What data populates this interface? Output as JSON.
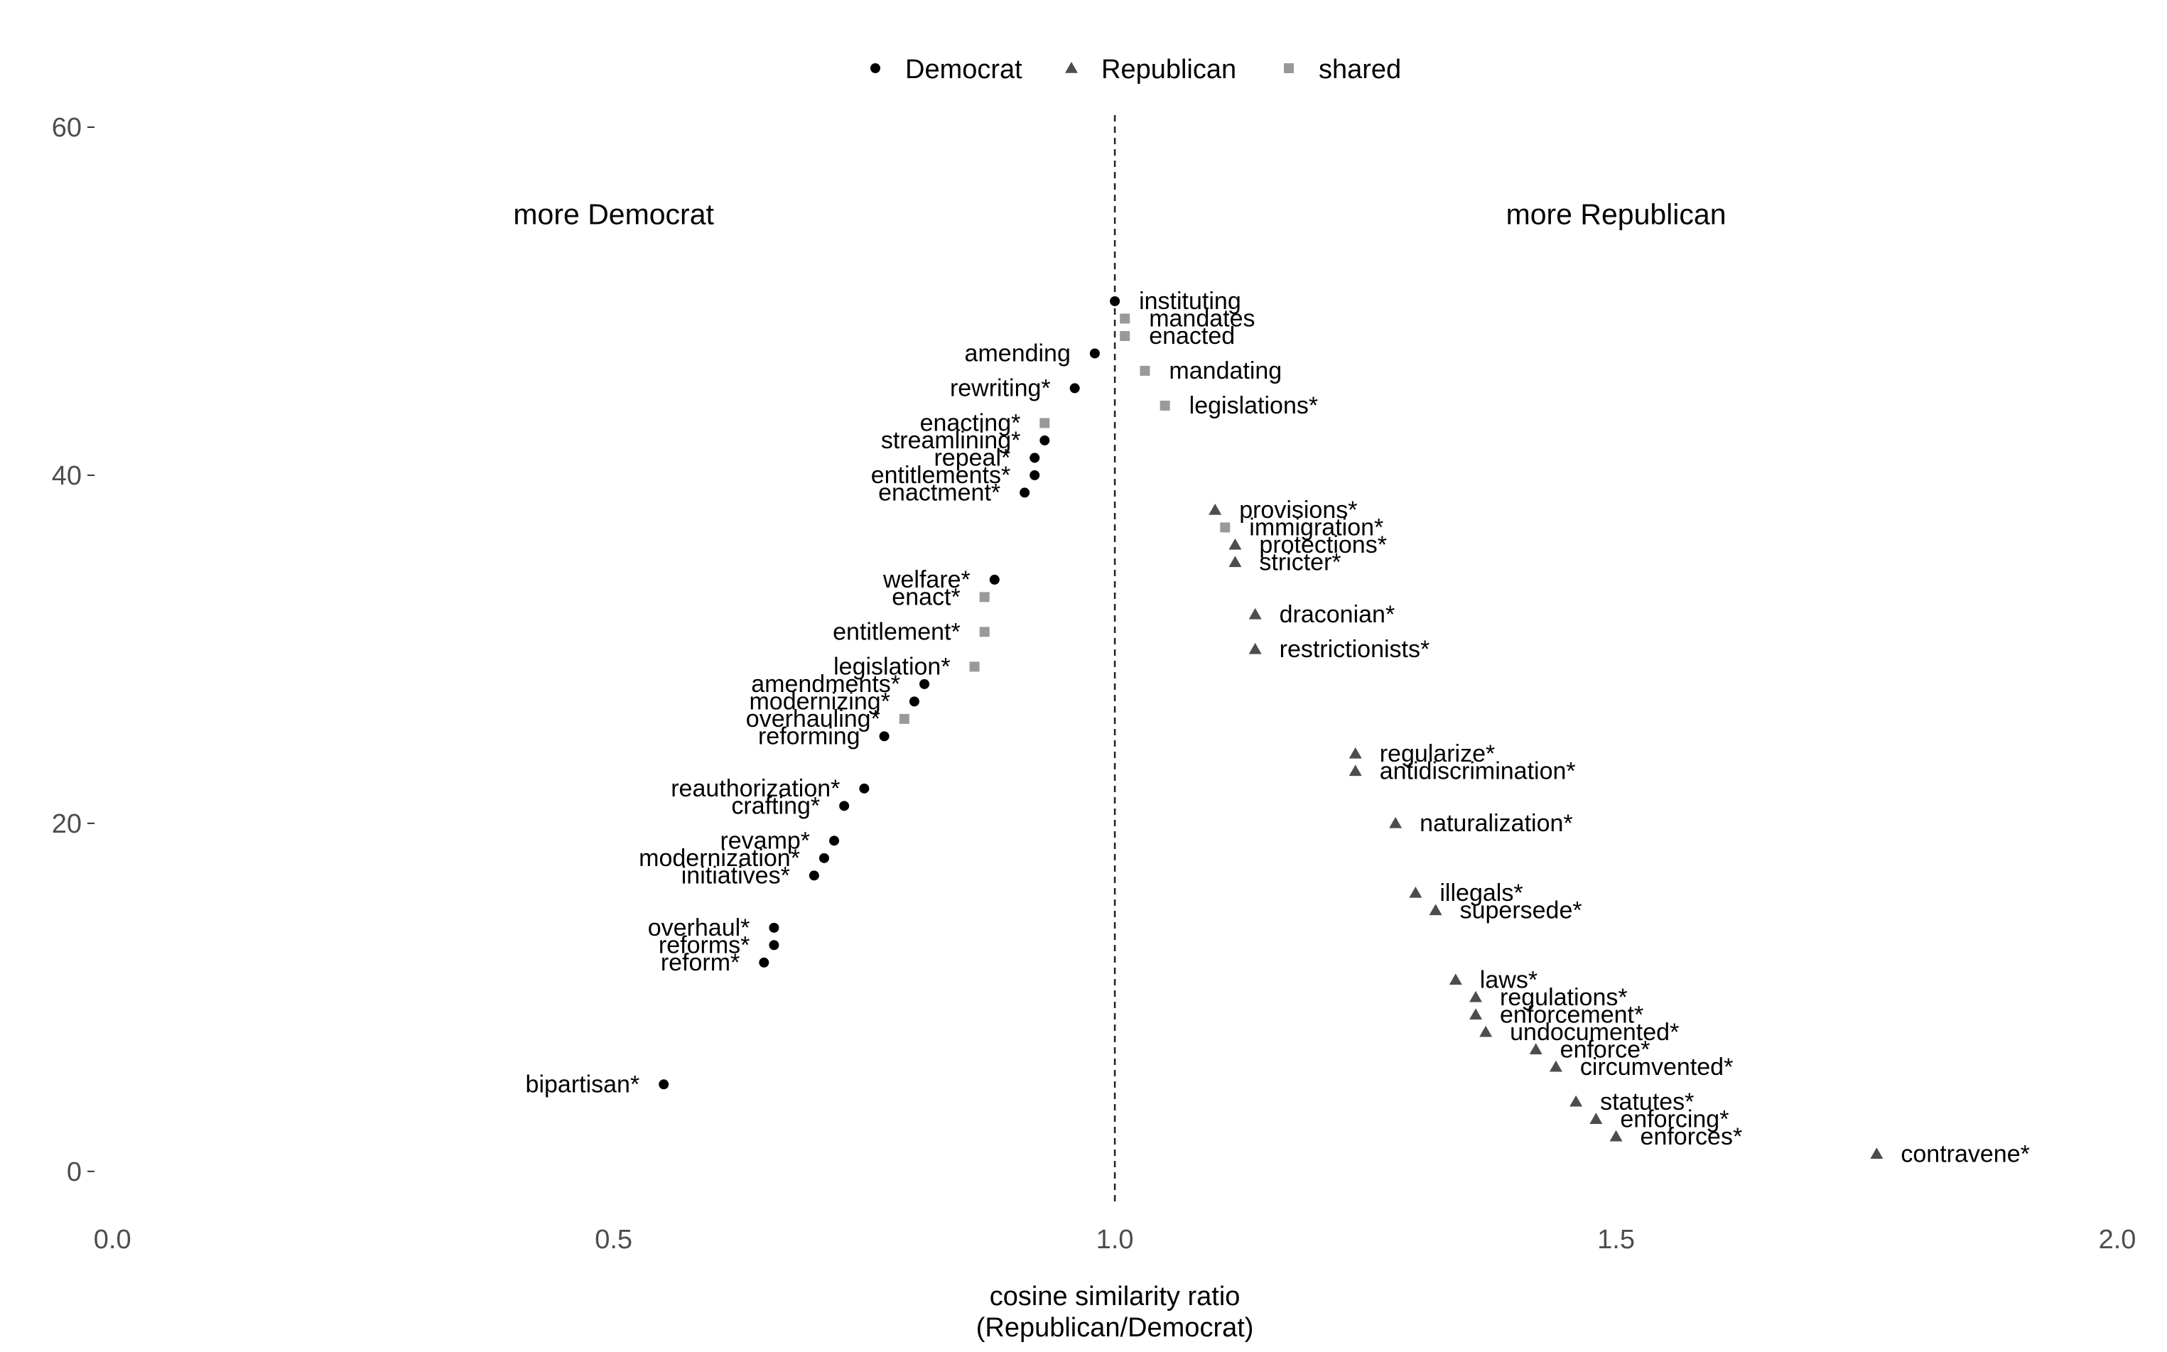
{
  "chart_data": {
    "type": "scatter",
    "xlabel_lines": [
      "cosine similarity ratio",
      "(Republican/Democrat)"
    ],
    "ylabel": "",
    "xlim": [
      -0.02,
      2.0
    ],
    "ylim": [
      -2.5,
      62
    ],
    "x_ticks": [
      {
        "value": 0.0,
        "label": "0.0"
      },
      {
        "value": 0.5,
        "label": "0.5"
      },
      {
        "value": 1.0,
        "label": "1.0"
      },
      {
        "value": 1.5,
        "label": "1.5"
      },
      {
        "value": 2.0,
        "label": "2.0"
      }
    ],
    "y_ticks": [
      {
        "value": 0,
        "label": "0"
      },
      {
        "value": 20,
        "label": "20"
      },
      {
        "value": 40,
        "label": "40"
      },
      {
        "value": 60,
        "label": "60"
      }
    ],
    "grid": false,
    "reference_line": {
      "x": 1.0,
      "style": "dashed"
    },
    "legend": {
      "placement": "top",
      "items": [
        {
          "group": "Democrat",
          "label": "Democrat",
          "shape": "circle",
          "color": "#000000"
        },
        {
          "group": "Republican",
          "label": "Republican",
          "shape": "triangle",
          "color": "#4d4d4d"
        },
        {
          "group": "shared",
          "label": "shared",
          "shape": "square",
          "color": "#999999"
        }
      ]
    },
    "annotations": [
      {
        "text": "more Democrat",
        "x": 0.5,
        "y": 55
      },
      {
        "text": "more Republican",
        "x": 1.5,
        "y": 55
      }
    ],
    "points": [
      {
        "label": "instituting",
        "x": 1.0,
        "y": 50,
        "group": "Democrat"
      },
      {
        "label": "mandates",
        "x": 1.01,
        "y": 49,
        "group": "shared"
      },
      {
        "label": "enacted",
        "x": 1.01,
        "y": 48,
        "group": "shared"
      },
      {
        "label": "amending",
        "x": 0.98,
        "y": 47,
        "group": "Democrat"
      },
      {
        "label": "mandating",
        "x": 1.03,
        "y": 46,
        "group": "shared"
      },
      {
        "label": "rewriting*",
        "x": 0.96,
        "y": 45,
        "group": "Democrat"
      },
      {
        "label": "legislations*",
        "x": 1.05,
        "y": 44,
        "group": "shared"
      },
      {
        "label": "enacting*",
        "x": 0.93,
        "y": 43,
        "group": "shared"
      },
      {
        "label": "streamlining*",
        "x": 0.93,
        "y": 42,
        "group": "Democrat"
      },
      {
        "label": "repeal*",
        "x": 0.92,
        "y": 41,
        "group": "Democrat"
      },
      {
        "label": "entitlements*",
        "x": 0.92,
        "y": 40,
        "group": "Democrat"
      },
      {
        "label": "enactment*",
        "x": 0.91,
        "y": 39,
        "group": "Democrat"
      },
      {
        "label": "provisions*",
        "x": 1.1,
        "y": 38,
        "group": "Republican"
      },
      {
        "label": "immigration*",
        "x": 1.11,
        "y": 37,
        "group": "shared"
      },
      {
        "label": "protections*",
        "x": 1.12,
        "y": 36,
        "group": "Republican"
      },
      {
        "label": "stricter*",
        "x": 1.12,
        "y": 35,
        "group": "Republican"
      },
      {
        "label": "welfare*",
        "x": 0.88,
        "y": 34,
        "group": "Democrat"
      },
      {
        "label": "enact*",
        "x": 0.87,
        "y": 33,
        "group": "shared"
      },
      {
        "label": "draconian*",
        "x": 1.14,
        "y": 32,
        "group": "Republican"
      },
      {
        "label": "entitlement*",
        "x": 0.87,
        "y": 31,
        "group": "shared"
      },
      {
        "label": "restrictionists*",
        "x": 1.14,
        "y": 30,
        "group": "Republican"
      },
      {
        "label": "legislation*",
        "x": 0.86,
        "y": 29,
        "group": "shared"
      },
      {
        "label": "amendments*",
        "x": 0.81,
        "y": 28,
        "group": "Democrat"
      },
      {
        "label": "modernizing*",
        "x": 0.8,
        "y": 27,
        "group": "Democrat"
      },
      {
        "label": "overhauling*",
        "x": 0.79,
        "y": 26,
        "group": "shared"
      },
      {
        "label": "reforming",
        "x": 0.77,
        "y": 25,
        "group": "Democrat"
      },
      {
        "label": "regularize*",
        "x": 1.24,
        "y": 24,
        "group": "Republican"
      },
      {
        "label": "antidiscrimination*",
        "x": 1.24,
        "y": 23,
        "group": "Republican"
      },
      {
        "label": "reauthorization*",
        "x": 0.75,
        "y": 22,
        "group": "Democrat"
      },
      {
        "label": "crafting*",
        "x": 0.73,
        "y": 21,
        "group": "Democrat"
      },
      {
        "label": "naturalization*",
        "x": 1.28,
        "y": 20,
        "group": "Republican"
      },
      {
        "label": "revamp*",
        "x": 0.72,
        "y": 19,
        "group": "Democrat"
      },
      {
        "label": "modernization*",
        "x": 0.71,
        "y": 18,
        "group": "Democrat"
      },
      {
        "label": "initiatives*",
        "x": 0.7,
        "y": 17,
        "group": "Democrat"
      },
      {
        "label": "illegals*",
        "x": 1.3,
        "y": 16,
        "group": "Republican"
      },
      {
        "label": "supersede*",
        "x": 1.32,
        "y": 15,
        "group": "Republican"
      },
      {
        "label": "overhaul*",
        "x": 0.66,
        "y": 14,
        "group": "Democrat"
      },
      {
        "label": "reforms*",
        "x": 0.66,
        "y": 13,
        "group": "Democrat"
      },
      {
        "label": "reform*",
        "x": 0.65,
        "y": 12,
        "group": "Democrat"
      },
      {
        "label": "laws*",
        "x": 1.34,
        "y": 11,
        "group": "Republican"
      },
      {
        "label": "regulations*",
        "x": 1.36,
        "y": 10,
        "group": "Republican"
      },
      {
        "label": "enforcement*",
        "x": 1.36,
        "y": 9,
        "group": "Republican"
      },
      {
        "label": "undocumented*",
        "x": 1.37,
        "y": 8,
        "group": "Republican"
      },
      {
        "label": "enforce*",
        "x": 1.42,
        "y": 7,
        "group": "Republican"
      },
      {
        "label": "circumvented*",
        "x": 1.44,
        "y": 6,
        "group": "Republican"
      },
      {
        "label": "bipartisan*",
        "x": 0.55,
        "y": 5,
        "group": "Democrat"
      },
      {
        "label": "statutes*",
        "x": 1.46,
        "y": 4,
        "group": "Republican"
      },
      {
        "label": "enforcing*",
        "x": 1.48,
        "y": 3,
        "group": "Republican"
      },
      {
        "label": "enforces*",
        "x": 1.5,
        "y": 2,
        "group": "Republican"
      },
      {
        "label": "contravene*",
        "x": 1.76,
        "y": 1,
        "group": "Republican"
      }
    ]
  }
}
